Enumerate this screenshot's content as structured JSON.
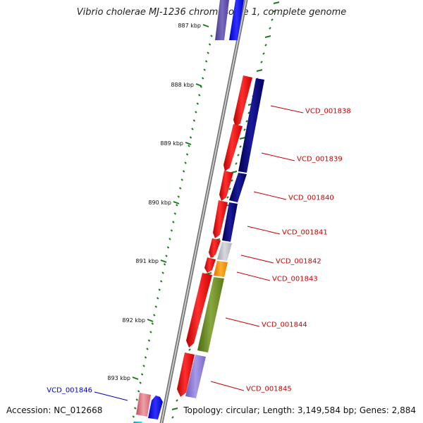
{
  "title": "Vibrio cholerae MJ-1236 chromosome 1, complete genome",
  "footer": {
    "accession": "Accession: NC_012668",
    "summary": "Topology: circular; Length: 3,149,584 bp; Genes: 2,884"
  },
  "colors": {
    "backbone": "#888888",
    "tick": "#1a7a1a",
    "label_red": "#cc0000",
    "label_blue": "#0000cc"
  },
  "kbp_ticks": [
    {
      "label": "887 kbp"
    },
    {
      "label": "888 kbp"
    },
    {
      "label": "889 kbp"
    },
    {
      "label": "890 kbp"
    },
    {
      "label": "891 kbp"
    },
    {
      "label": "892 kbp"
    },
    {
      "label": "893 kbp"
    }
  ],
  "gene_labels": [
    {
      "name": "VCD_001838",
      "color": "#cc0000"
    },
    {
      "name": "VCD_001839",
      "color": "#cc0000"
    },
    {
      "name": "VCD_001840",
      "color": "#cc0000"
    },
    {
      "name": "VCD_001841",
      "color": "#cc0000"
    },
    {
      "name": "VCD_001842",
      "color": "#cc0000"
    },
    {
      "name": "VCD_001843",
      "color": "#cc0000"
    },
    {
      "name": "VCD_001844",
      "color": "#cc0000"
    },
    {
      "name": "VCD_001845",
      "color": "#cc0000"
    },
    {
      "name": "VCD_001846",
      "color": "#0000cc"
    }
  ]
}
